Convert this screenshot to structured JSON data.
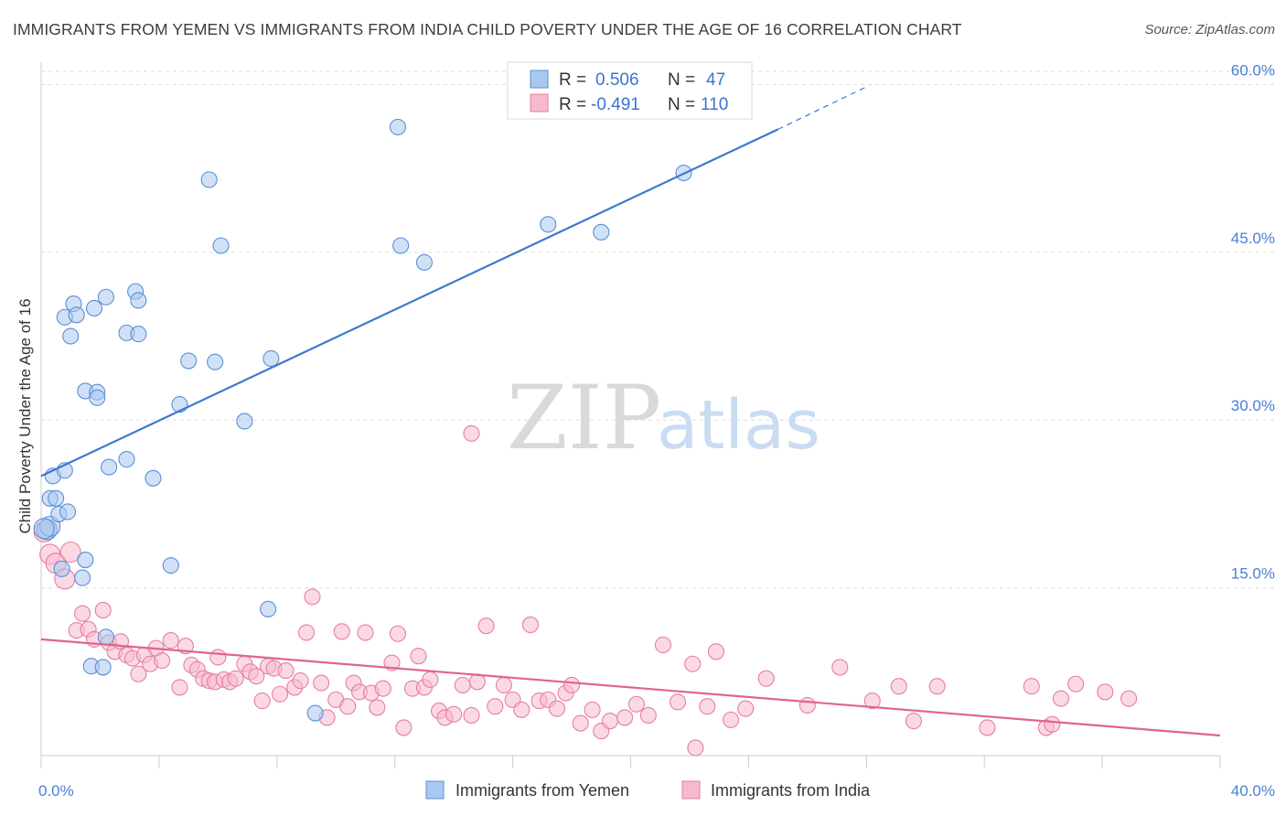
{
  "title": "IMMIGRANTS FROM YEMEN VS IMMIGRANTS FROM INDIA CHILD POVERTY UNDER THE AGE OF 16 CORRELATION CHART",
  "source": "Source: ZipAtlas.com",
  "watermark": {
    "zip": "ZIP",
    "atlas": "atlas"
  },
  "colors": {
    "yemen_fill": "#a9c8f0",
    "yemen_stroke": "#5b8fd6",
    "yemen_line": "#3a78d0",
    "india_fill": "#f7b9cd",
    "india_stroke": "#e57fa0",
    "india_line": "#e0648f",
    "grid": "#dddddd",
    "axis_label": "#4a7fd4"
  },
  "legend": {
    "rows": [
      {
        "r_label": "R =",
        "r_value": "0.506",
        "n_label": "N =",
        "n_value": "47"
      },
      {
        "r_label": "R =",
        "r_value": "-0.491",
        "n_label": "N =",
        "n_value": "110"
      }
    ]
  },
  "chart_data": {
    "type": "scatter",
    "xlabel": "",
    "ylabel": "Child Poverty Under the Age of 16",
    "xlim": [
      0,
      40
    ],
    "ylim": [
      0,
      62
    ],
    "x_tick_labels": [
      "0.0%",
      "40.0%"
    ],
    "y_ticks": [
      15,
      30,
      45,
      60
    ],
    "y_tick_labels": [
      "15.0%",
      "30.0%",
      "45.0%",
      "60.0%"
    ],
    "grid": true,
    "legend_position": "bottom",
    "series": [
      {
        "name": "Immigrants from Yemen",
        "r": 0.506,
        "n": 47,
        "trend": {
          "x0": 0,
          "y0": 25.0,
          "x1": 25,
          "y1": 56.0,
          "dash_to_x": 28,
          "dash_to_y": 59.8
        },
        "points": [
          [
            0.2,
            20.2
          ],
          [
            0.3,
            20.5
          ],
          [
            0.3,
            23.0
          ],
          [
            0.4,
            25.0
          ],
          [
            0.5,
            23.0
          ],
          [
            0.6,
            21.6
          ],
          [
            0.7,
            16.7
          ],
          [
            0.8,
            25.5
          ],
          [
            0.9,
            21.8
          ],
          [
            0.8,
            39.2
          ],
          [
            1.0,
            37.5
          ],
          [
            1.1,
            40.4
          ],
          [
            1.2,
            39.4
          ],
          [
            1.4,
            15.9
          ],
          [
            1.5,
            17.5
          ],
          [
            1.5,
            32.6
          ],
          [
            1.7,
            8.0
          ],
          [
            1.8,
            40.0
          ],
          [
            1.9,
            32.5
          ],
          [
            1.9,
            32.0
          ],
          [
            2.1,
            7.9
          ],
          [
            2.2,
            10.6
          ],
          [
            2.2,
            41.0
          ],
          [
            2.3,
            25.8
          ],
          [
            2.9,
            37.8
          ],
          [
            2.9,
            26.5
          ],
          [
            3.2,
            41.5
          ],
          [
            3.3,
            37.7
          ],
          [
            3.3,
            40.7
          ],
          [
            3.8,
            24.8
          ],
          [
            4.4,
            17.0
          ],
          [
            4.7,
            31.4
          ],
          [
            5.0,
            35.3
          ],
          [
            5.7,
            51.5
          ],
          [
            5.9,
            35.2
          ],
          [
            6.1,
            45.6
          ],
          [
            6.9,
            29.9
          ],
          [
            7.7,
            13.1
          ],
          [
            7.8,
            35.5
          ],
          [
            9.3,
            3.8
          ],
          [
            12.2,
            45.6
          ],
          [
            12.1,
            56.2
          ],
          [
            13.0,
            44.1
          ],
          [
            17.2,
            47.5
          ],
          [
            19.0,
            46.8
          ],
          [
            21.8,
            52.1
          ],
          [
            0.1,
            20.3
          ]
        ]
      },
      {
        "name": "Immigrants from India",
        "r": -0.491,
        "n": 110,
        "trend": {
          "x0": 0,
          "y0": 10.4,
          "x1": 40,
          "y1": 1.8
        },
        "points": [
          [
            0.1,
            20.0
          ],
          [
            0.3,
            18.0
          ],
          [
            0.5,
            17.2
          ],
          [
            0.8,
            15.8
          ],
          [
            1.0,
            18.2
          ],
          [
            1.2,
            11.2
          ],
          [
            1.4,
            12.7
          ],
          [
            1.6,
            11.3
          ],
          [
            1.8,
            10.4
          ],
          [
            2.1,
            13.0
          ],
          [
            2.3,
            10.1
          ],
          [
            2.5,
            9.3
          ],
          [
            2.7,
            10.2
          ],
          [
            2.9,
            9.0
          ],
          [
            3.1,
            8.7
          ],
          [
            3.3,
            7.3
          ],
          [
            3.5,
            9.0
          ],
          [
            3.7,
            8.2
          ],
          [
            3.9,
            9.6
          ],
          [
            4.1,
            8.5
          ],
          [
            4.4,
            10.3
          ],
          [
            4.7,
            6.1
          ],
          [
            4.9,
            9.8
          ],
          [
            5.1,
            8.1
          ],
          [
            5.3,
            7.7
          ],
          [
            5.5,
            6.9
          ],
          [
            5.7,
            6.7
          ],
          [
            5.9,
            6.6
          ],
          [
            6.0,
            8.8
          ],
          [
            6.2,
            6.8
          ],
          [
            6.4,
            6.6
          ],
          [
            6.6,
            6.9
          ],
          [
            6.9,
            8.2
          ],
          [
            7.1,
            7.5
          ],
          [
            7.3,
            7.1
          ],
          [
            7.5,
            4.9
          ],
          [
            7.7,
            8.0
          ],
          [
            7.9,
            7.8
          ],
          [
            8.1,
            5.5
          ],
          [
            8.3,
            7.6
          ],
          [
            8.6,
            6.1
          ],
          [
            8.8,
            6.7
          ],
          [
            9.0,
            11.0
          ],
          [
            9.2,
            14.2
          ],
          [
            9.5,
            6.5
          ],
          [
            9.7,
            3.4
          ],
          [
            10.0,
            5.0
          ],
          [
            10.2,
            11.1
          ],
          [
            10.4,
            4.4
          ],
          [
            10.6,
            6.5
          ],
          [
            10.8,
            5.7
          ],
          [
            11.0,
            11.0
          ],
          [
            11.2,
            5.6
          ],
          [
            11.4,
            4.3
          ],
          [
            11.6,
            6.0
          ],
          [
            11.9,
            8.3
          ],
          [
            12.1,
            10.9
          ],
          [
            12.3,
            2.5
          ],
          [
            12.6,
            6.0
          ],
          [
            12.8,
            8.9
          ],
          [
            13.0,
            6.1
          ],
          [
            13.2,
            6.8
          ],
          [
            13.5,
            4.0
          ],
          [
            13.7,
            3.4
          ],
          [
            14.0,
            3.7
          ],
          [
            14.3,
            6.3
          ],
          [
            14.6,
            3.6
          ],
          [
            14.8,
            6.6
          ],
          [
            15.1,
            11.6
          ],
          [
            15.4,
            4.4
          ],
          [
            15.7,
            6.3
          ],
          [
            16.0,
            5.0
          ],
          [
            16.3,
            4.1
          ],
          [
            16.6,
            11.7
          ],
          [
            16.9,
            4.9
          ],
          [
            17.2,
            5.0
          ],
          [
            17.5,
            4.2
          ],
          [
            17.8,
            5.6
          ],
          [
            18.0,
            6.3
          ],
          [
            18.3,
            2.9
          ],
          [
            18.7,
            4.1
          ],
          [
            19.0,
            2.2
          ],
          [
            19.3,
            3.1
          ],
          [
            19.8,
            3.4
          ],
          [
            20.2,
            4.6
          ],
          [
            20.6,
            3.6
          ],
          [
            21.1,
            9.9
          ],
          [
            21.6,
            4.8
          ],
          [
            22.1,
            8.2
          ],
          [
            22.6,
            4.4
          ],
          [
            22.9,
            9.3
          ],
          [
            23.4,
            3.2
          ],
          [
            23.9,
            4.2
          ],
          [
            24.6,
            6.9
          ],
          [
            26.0,
            4.5
          ],
          [
            27.1,
            7.9
          ],
          [
            28.2,
            4.9
          ],
          [
            29.1,
            6.2
          ],
          [
            29.6,
            3.1
          ],
          [
            30.4,
            6.2
          ],
          [
            32.1,
            2.5
          ],
          [
            33.6,
            6.2
          ],
          [
            34.1,
            2.5
          ],
          [
            34.3,
            2.8
          ],
          [
            34.6,
            5.1
          ],
          [
            35.1,
            6.4
          ],
          [
            36.1,
            5.7
          ],
          [
            36.9,
            5.1
          ],
          [
            22.2,
            0.7
          ],
          [
            14.6,
            28.8
          ]
        ]
      }
    ]
  }
}
